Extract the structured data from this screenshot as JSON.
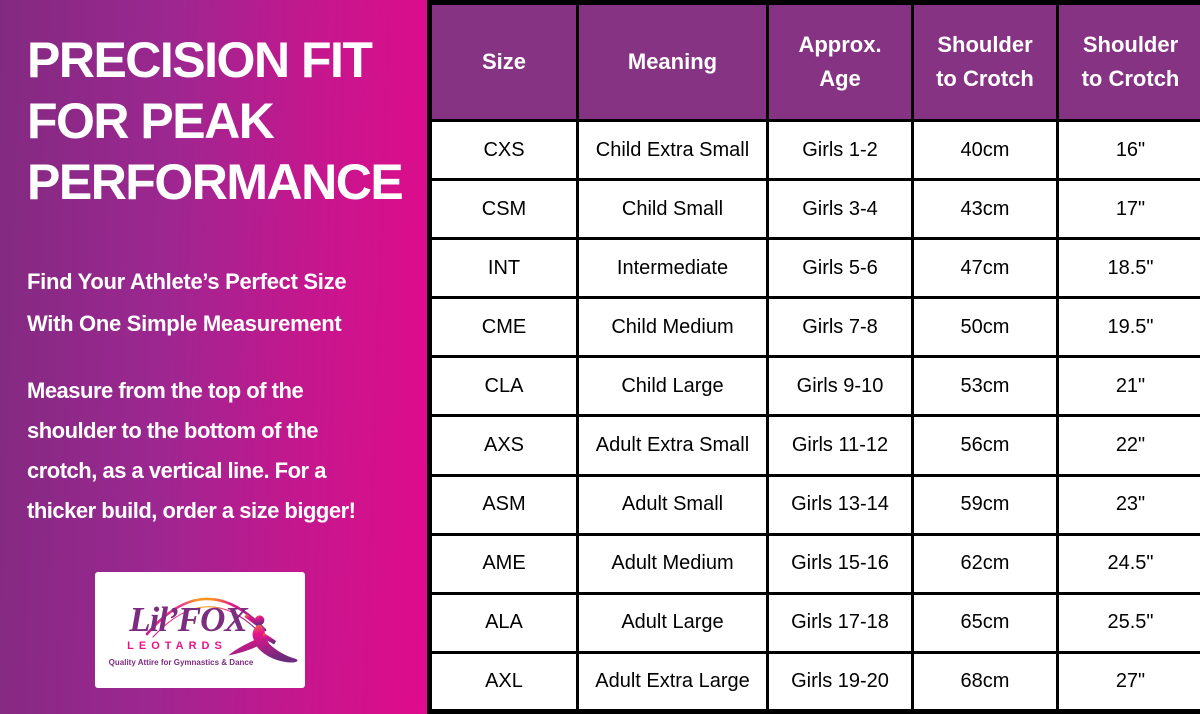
{
  "left_panel": {
    "headline_lines": [
      "PRECISION FIT",
      "FOR PEAK",
      "PERFORMANCE"
    ],
    "subheadline_lines": [
      "Find Your Athlete’s Perfect Size",
      "With One Simple Measurement"
    ],
    "instruction_lines": [
      "Measure from the top of the",
      "shoulder to the bottom of the",
      "crotch, as a vertical line. For a",
      "thicker build, order a size bigger!"
    ],
    "logo": {
      "brand": "Lil’FOX",
      "wordmark_sub": "LEOTARDS",
      "tagline": "Quality Attire for Gymnastics & Dance",
      "icons": [
        "rainbow-arc-icon",
        "gymnast-icon"
      ]
    }
  },
  "table": {
    "headers": [
      [
        "Size"
      ],
      [
        "Meaning"
      ],
      [
        "Approx.",
        "Age"
      ],
      [
        "Shoulder",
        "to Crotch"
      ],
      [
        "Shoulder",
        "to Crotch"
      ]
    ],
    "rows": [
      [
        "CXS",
        "Child Extra Small",
        "Girls 1-2",
        "40cm",
        "16\""
      ],
      [
        "CSM",
        "Child Small",
        "Girls 3-4",
        "43cm",
        "17\""
      ],
      [
        "INT",
        "Intermediate",
        "Girls 5-6",
        "47cm",
        "18.5\""
      ],
      [
        "CME",
        "Child Medium",
        "Girls 7-8",
        "50cm",
        "19.5\""
      ],
      [
        "CLA",
        "Child Large",
        "Girls 9-10",
        "53cm",
        "21\""
      ],
      [
        "AXS",
        "Adult Extra Small",
        "Girls 11-12",
        "56cm",
        "22\""
      ],
      [
        "ASM",
        "Adult Small",
        "Girls 13-14",
        "59cm",
        "23\""
      ],
      [
        "AME",
        "Adult Medium",
        "Girls 15-16",
        "62cm",
        "24.5\""
      ],
      [
        "ALA",
        "Adult Large",
        "Girls 17-18",
        "65cm",
        "25.5\""
      ],
      [
        "AXL",
        "Adult Extra Large",
        "Girls 19-20",
        "68cm",
        "27\""
      ]
    ]
  },
  "colors": {
    "gradient_start": "#822a81",
    "gradient_end": "#e00b8b",
    "header_bg": "#853382",
    "header_text": "#ffffff",
    "cell_bg": "#ffffff",
    "cell_text": "#000000",
    "table_border": "#000000",
    "logo_purple": "#7b2d80",
    "logo_magenta": "#e5148c",
    "logo_orange": "#f7941d"
  }
}
